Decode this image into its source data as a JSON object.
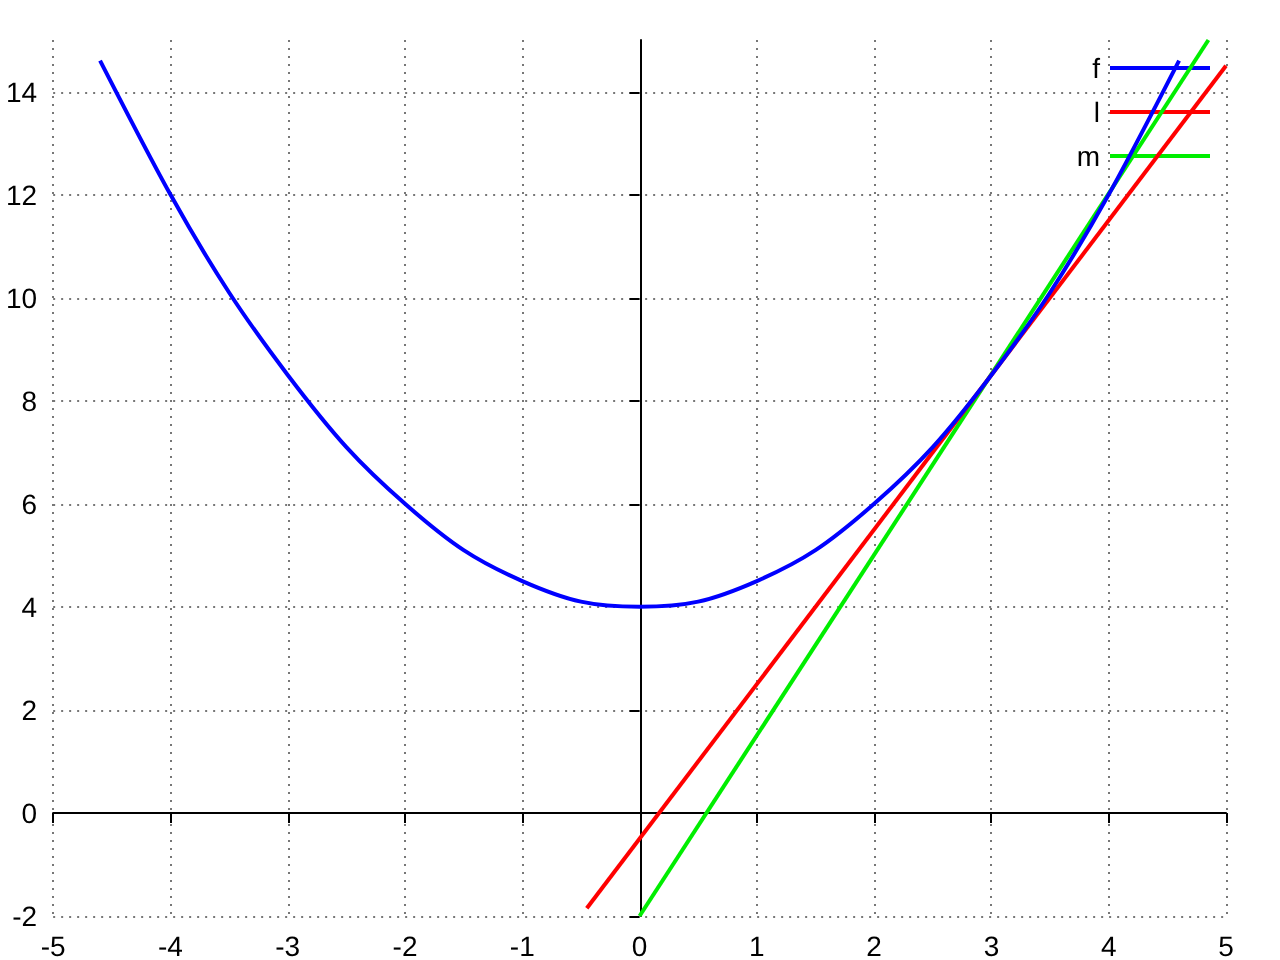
{
  "chart_data": {
    "type": "line",
    "xlim": [
      -5,
      5
    ],
    "ylim": [
      -2,
      15
    ],
    "xticks": [
      -5,
      -4,
      -3,
      -2,
      -1,
      0,
      1,
      2,
      3,
      4,
      5
    ],
    "yticks": [
      -2,
      0,
      2,
      4,
      6,
      8,
      10,
      12,
      14
    ],
    "grid": true,
    "legend": "top right",
    "marker": "none",
    "line_style": "solid",
    "series": [
      {
        "name": "f",
        "color": "#0000ff",
        "x": [
          -4.6,
          -4,
          -3.5,
          -3,
          -2.5,
          -2,
          -1.5,
          -1,
          -0.5,
          0,
          0.5,
          1,
          1.5,
          2,
          2.5,
          3,
          3.5,
          4,
          4.6
        ],
        "values": [
          14.6,
          12,
          10.1,
          8.5,
          7.1,
          6,
          5.1,
          4.5,
          4.1,
          4,
          4.1,
          4.5,
          5.1,
          6,
          7.1,
          8.5,
          10.1,
          12,
          14.6
        ]
      },
      {
        "name": "l",
        "color": "#ff0000",
        "x": [
          -0.45,
          5
        ],
        "values": [
          -1.85,
          14.5
        ]
      },
      {
        "name": "m",
        "color": "#00ee00",
        "x": [
          0,
          4.85
        ],
        "values": [
          -2,
          15
        ]
      }
    ]
  }
}
